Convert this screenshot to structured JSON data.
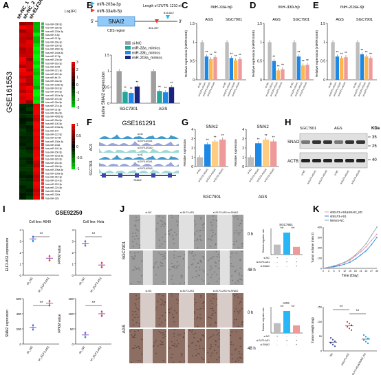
{
  "panels": {
    "A": "A",
    "B": "B",
    "C": "C",
    "D": "D",
    "E": "E",
    "F": "F",
    "G": "G",
    "H": "H",
    "I": "I",
    "J": "J",
    "K": "K"
  },
  "panelA": {
    "columns": [
      "sh-NC_1",
      "sh-NC_2",
      "sh-ELF3AS1"
    ],
    "side_label": "GSE161553",
    "log2fc_label": "Log2FC",
    "scale1": [
      "3",
      "2",
      "1",
      "0",
      "-1",
      "-2",
      "-3"
    ],
    "scale2": [
      "1",
      "0.5",
      "0",
      "-0.5",
      "-1"
    ],
    "genes": [
      "hsa-miR-33b-5p",
      "hsa-miR-33a-5p",
      "hsa-miR-203a-3p",
      "hsa-miR-9-5p",
      "hsa-miR-21-5p",
      "hsa-miR-29a-3p",
      "hsa-miR-155-5p",
      "hsa-miR-200c-3p",
      "hsa-miR-146a-5p",
      "hsa-miR-17-5p",
      "hsa-miR-20a-5p",
      "hsa-miR-92a-3p",
      "hsa-miR-1246",
      "hsa-miR-221-3p",
      "hsa-miR-222-3p",
      "hsa-miR-let-7b",
      "hsa-miR-30a-5p",
      "hsa-miR-125b-5p",
      "hsa-miR-143-3p",
      "hsa-miR-145-5p",
      "hsa-miR-181a-5p",
      "hsa-miR-191-5p",
      "hsa-miR-26a-5p",
      "hsa-miR-27a-3p",
      "hsa-miR-31-5p",
      "hsa-miR-34a-5p",
      "hsa-miR-4695-3p",
      "hsa-miR-99a-5p",
      "hsa-miR-100-5p",
      "hsa-miR-103a-3p",
      "hsa-miR-107",
      "hsa-miR-122-5p",
      "hsa-miR-1273h",
      "hsa-miR-130a-3p",
      "hsa-miR-133a",
      "hsa-miR-140-3p",
      "hsa-miR-150-5p",
      "hsa-miR-151a-3p",
      "hsa-miR-182-5p",
      "hsa-miR-183-5p",
      "hsa-miR-186-5p",
      "hsa-miR-196a-5p",
      "hsa-miR-199a-5p",
      "hsa-miR-210-3p",
      "hsa-miR-214-3p",
      "hsa-miR-223-3p",
      "hsa-miR-224-5p",
      "hsa-miR-301a",
      "hsa-miR-320a",
      "hsa-miR-328"
    ]
  },
  "panelB": {
    "gene_box": "SNAI2",
    "mirs": [
      "miR-203a-3p",
      "miR-33a/b-5p"
    ],
    "utr": "Length of 3'UTR: 1210 nt",
    "site1": "816-822",
    "site2": "351-357",
    "five": "5'",
    "three": "3'",
    "cds": "CDS region",
    "ylabel": "Relative SNAI2 expression",
    "legend": [
      "si-NC",
      "miR-33a_mimics",
      "miR-33b_mimics",
      "miR-203a_mimics"
    ],
    "groups": [
      "SGC7901",
      "AGS"
    ]
  },
  "chart_data": [
    {
      "type": "bar",
      "panel": "B",
      "title": "",
      "ylabel": "Relative SNAI2 expression",
      "categories": [
        "SGC7901",
        "AGS"
      ],
      "ylim": [
        0,
        1.5
      ],
      "series": [
        {
          "name": "si-NC",
          "values": [
            1.0,
            1.0
          ]
        },
        {
          "name": "miR-33a_mimics",
          "values": [
            0.35,
            0.38
          ]
        },
        {
          "name": "miR-33b_mimics",
          "values": [
            0.32,
            0.34
          ]
        },
        {
          "name": "miR-203a_mimics",
          "values": [
            0.52,
            0.5
          ]
        }
      ]
    },
    {
      "type": "bar",
      "panel": "C",
      "title": "miR-33a-5p",
      "ylabel": "Relative expression (miR/RNU6B)",
      "categories": [
        "AGS",
        "SGC7901"
      ],
      "ylim": [
        0,
        1.5
      ],
      "series": [
        {
          "name": "sh-NC",
          "values": [
            1.0,
            1.0
          ]
        },
        {
          "name": "sh-ELF3-AS1#1",
          "values": [
            0.62,
            0.58
          ]
        },
        {
          "name": "sh-ELF3-AS1#2",
          "values": [
            0.55,
            0.52
          ]
        },
        {
          "name": "sh-ELF3-AS1#3",
          "values": [
            0.6,
            0.55
          ]
        }
      ]
    },
    {
      "type": "bar",
      "panel": "D",
      "title": "miR-33b-5p",
      "ylabel": "Relative expression (miR/RNU6B)",
      "categories": [
        "AGS",
        "SGC7901"
      ],
      "ylim": [
        0,
        1.5
      ],
      "series": [
        {
          "name": "sh-NC",
          "values": [
            1.0,
            1.0
          ]
        },
        {
          "name": "sh-ELF3-AS1#1",
          "values": [
            0.5,
            0.62
          ]
        },
        {
          "name": "sh-ELF3-AS1#2",
          "values": [
            0.25,
            0.38
          ]
        },
        {
          "name": "sh-ELF3-AS1#3",
          "values": [
            0.28,
            0.4
          ]
        }
      ]
    },
    {
      "type": "bar",
      "panel": "E",
      "title": "miR-203a-3p",
      "ylabel": "Relative expression (miR/RNU6B)",
      "categories": [
        "AGS",
        "SGC7901"
      ],
      "ylim": [
        0,
        1.5
      ],
      "series": [
        {
          "name": "sh-NC",
          "values": [
            1.0,
            1.0
          ]
        },
        {
          "name": "sh-ELF3-AS1#1",
          "values": [
            0.62,
            0.68
          ]
        },
        {
          "name": "sh-ELF3-AS1#2",
          "values": [
            0.58,
            0.62
          ]
        },
        {
          "name": "sh-ELF3-AS1#3",
          "values": [
            0.6,
            0.58
          ]
        }
      ]
    },
    {
      "type": "bar",
      "panel": "G",
      "title": "SNAI2",
      "ylabel": "Relative expression",
      "categories": [
        "SGC7901"
      ],
      "ylim": [
        0,
        4
      ],
      "series": [
        {
          "name": "si-NC",
          "values": [
            1.0
          ]
        },
        {
          "name": "si-ELF3-AS1#1",
          "values": [
            2.4
          ]
        },
        {
          "name": "si-ELF3-AS1#2",
          "values": [
            2.7
          ]
        },
        {
          "name": "si-ELF3-AS1#3",
          "values": [
            2.9
          ]
        }
      ]
    },
    {
      "type": "bar",
      "panel": "G2",
      "title": "SNAI2",
      "ylabel": "Relative expression",
      "categories": [
        "AGS"
      ],
      "ylim": [
        0,
        4
      ],
      "series": [
        {
          "name": "si-NC",
          "values": [
            1.0
          ]
        },
        {
          "name": "si-ELF3-AS1#1",
          "values": [
            2.5
          ]
        },
        {
          "name": "si-ELF3-AS1#2",
          "values": [
            2.9
          ]
        },
        {
          "name": "si-ELF3-AS1#3",
          "values": [
            2.7
          ]
        }
      ]
    },
    {
      "type": "scatter",
      "panel": "I",
      "title": "Cell line: A549",
      "ylabel": "ELF3-AS1 expression",
      "categories": [
        "sh_NC",
        "sh_ELF3-AS1"
      ],
      "values": [
        3.2,
        1.5
      ]
    },
    {
      "type": "scatter",
      "panel": "I",
      "title": "Cell line: Hela",
      "ylabel": "FPKM value",
      "categories": [
        "sh_NC",
        "sh_ELF3-AS1"
      ],
      "values": [
        2.8,
        0.9
      ]
    },
    {
      "type": "scatter",
      "panel": "I",
      "title": "",
      "ylabel": "SNAI2 expression",
      "categories": [
        "sh_NC",
        "sh_ELF3-AS1"
      ],
      "values": [
        220,
        540
      ]
    },
    {
      "type": "scatter",
      "panel": "I",
      "title": "",
      "ylabel": "FPKM value",
      "categories": [
        "sh_NC",
        "sh_ELF3-AS1"
      ],
      "values": [
        30,
        100
      ]
    },
    {
      "type": "line",
      "panel": "K",
      "title": "",
      "xlabel": "Time (Day)",
      "ylabel": "Tumor volume (mm 3)",
      "x": [
        0,
        3,
        6,
        9,
        12,
        15,
        18,
        21,
        24,
        27,
        30
      ],
      "series": [
        {
          "name": "shELF3-AS1&shSNAI2_KD",
          "values": [
            0,
            10,
            20,
            35,
            55,
            80,
            120,
            160,
            210,
            270,
            330
          ]
        },
        {
          "name": "shELF3-AS1",
          "values": [
            0,
            10,
            15,
            25,
            40,
            60,
            90,
            130,
            170,
            230,
            300
          ]
        },
        {
          "name": "Mimics-NC",
          "values": [
            0,
            10,
            25,
            40,
            60,
            90,
            130,
            180,
            240,
            320,
            400
          ]
        }
      ]
    },
    {
      "type": "scatter",
      "panel": "K2",
      "title": "",
      "ylabel": "Tumor weight (mg)",
      "categories": [
        "NC",
        "shELF3-AS1",
        "shELF3-AS1&SNAI2_KD"
      ],
      "values": [
        30,
        85,
        40
      ]
    }
  ],
  "panelF": {
    "title": "GSE161291",
    "cells": [
      "AGS",
      "SGC7901"
    ],
    "tracks": [
      "si-NC",
      "si-ELF3-AS1#1",
      "si-ELF3-AS1#2"
    ],
    "gene": "SNAI2"
  },
  "panelG": {
    "ylabel": "Relative expression",
    "title": "SNAI2",
    "groups": [
      "SGC7901",
      "AGS"
    ],
    "ticks": [
      "si-NC",
      "si-ELF3-AS1#1",
      "si-ELF3-AS1#2",
      "si-ELF3-AS1#3"
    ]
  },
  "panelH": {
    "cells": [
      "SGC7901",
      "AGS"
    ],
    "kda": "KDa",
    "proteins": [
      "SNAI2",
      "ACTB"
    ],
    "markers": [
      "35",
      "25",
      "40"
    ],
    "lanes": [
      "si-NC",
      "si-ELF3-AS1#1",
      "si-ELF3-AS1#2",
      "si-NC",
      "si-ELF3-AS1#1",
      "si-ELF3-AS1#2"
    ]
  },
  "panelI": {
    "title": "GSE92250",
    "cl1": "Cell line: A549",
    "cl2": "Cell line: Hela",
    "y1": "ELF3-AS1 expression",
    "y2": "SNAI2 expression",
    "fpkm": "FPKM value",
    "x": [
      "sh_NC",
      "sh_ELF3-AS1"
    ],
    "sig": "**"
  },
  "panelJ": {
    "cols": [
      "si-NC",
      "si-ELF3-AS1",
      "si-ELF3-AS1+si-SNAI2"
    ],
    "cells": [
      "SGC7901",
      "AGS"
    ],
    "times": [
      "0 h",
      "48 h"
    ],
    "bar_title1": "SGC7901",
    "bar_title2": "AGS",
    "ylabel": "Relative migration rate",
    "rows": [
      "si-NC",
      "si-ELF3-AS1",
      "si-SNAI2"
    ],
    "signs": [
      "+",
      "-",
      "-",
      "-",
      "+",
      "+",
      "-",
      "-",
      "+"
    ]
  },
  "panelK": {
    "legend": [
      "shELF3-AS1&SNAI2_KD",
      "shELF3-AS1",
      "Mimics-NC"
    ],
    "ylabel": "Tumor volume (mm 3)",
    "xlabel": "Time (Day)",
    "ylabel2": "Tumor weight (mg)",
    "groups": [
      "NC",
      "shELF3-AS1",
      "shELF3-AS1&SNAI2_KD"
    ]
  }
}
